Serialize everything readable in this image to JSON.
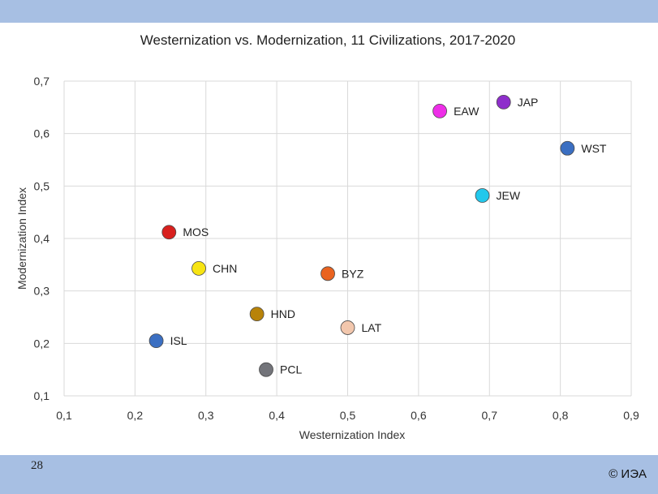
{
  "slide": {
    "page_number": "28",
    "copyright": "© ИЭА"
  },
  "chart_data": {
    "type": "scatter",
    "title": "Westernization vs. Modernization, 11 Civilizations, 2017-2020",
    "xlabel": "Westernization Index",
    "ylabel": "Modernization Index",
    "xlim": [
      0.1,
      0.9
    ],
    "ylim": [
      0.1,
      0.7
    ],
    "xticks": [
      0.1,
      0.2,
      0.3,
      0.4,
      0.5,
      0.6,
      0.7,
      0.8,
      0.9
    ],
    "yticks": [
      0.1,
      0.2,
      0.3,
      0.4,
      0.5,
      0.6,
      0.7
    ],
    "xtick_labels": [
      "0,1",
      "0,2",
      "0,3",
      "0,4",
      "0,5",
      "0,6",
      "0,7",
      "0,8",
      "0,9"
    ],
    "ytick_labels": [
      "0,1",
      "0,2",
      "0,3",
      "0,4",
      "0,5",
      "0,6",
      "0,7"
    ],
    "grid": true,
    "points": [
      {
        "label": "JAP",
        "x": 0.72,
        "y": 0.66,
        "color": "#8e2ecb"
      },
      {
        "label": "EAW",
        "x": 0.63,
        "y": 0.643,
        "color": "#ee2ee8"
      },
      {
        "label": "WST",
        "x": 0.81,
        "y": 0.572,
        "color": "#3b6fc2"
      },
      {
        "label": "JEW",
        "x": 0.69,
        "y": 0.482,
        "color": "#22c8ec"
      },
      {
        "label": "MOS",
        "x": 0.248,
        "y": 0.412,
        "color": "#d8201e"
      },
      {
        "label": "CHN",
        "x": 0.29,
        "y": 0.343,
        "color": "#f7e413"
      },
      {
        "label": "BYZ",
        "x": 0.472,
        "y": 0.333,
        "color": "#ea6320"
      },
      {
        "label": "HND",
        "x": 0.372,
        "y": 0.256,
        "color": "#b88309"
      },
      {
        "label": "LAT",
        "x": 0.5,
        "y": 0.23,
        "color": "#f2c7ad"
      },
      {
        "label": "ISL",
        "x": 0.23,
        "y": 0.205,
        "color": "#3b6fc2"
      },
      {
        "label": "PCL",
        "x": 0.385,
        "y": 0.15,
        "color": "#73747a"
      }
    ]
  }
}
